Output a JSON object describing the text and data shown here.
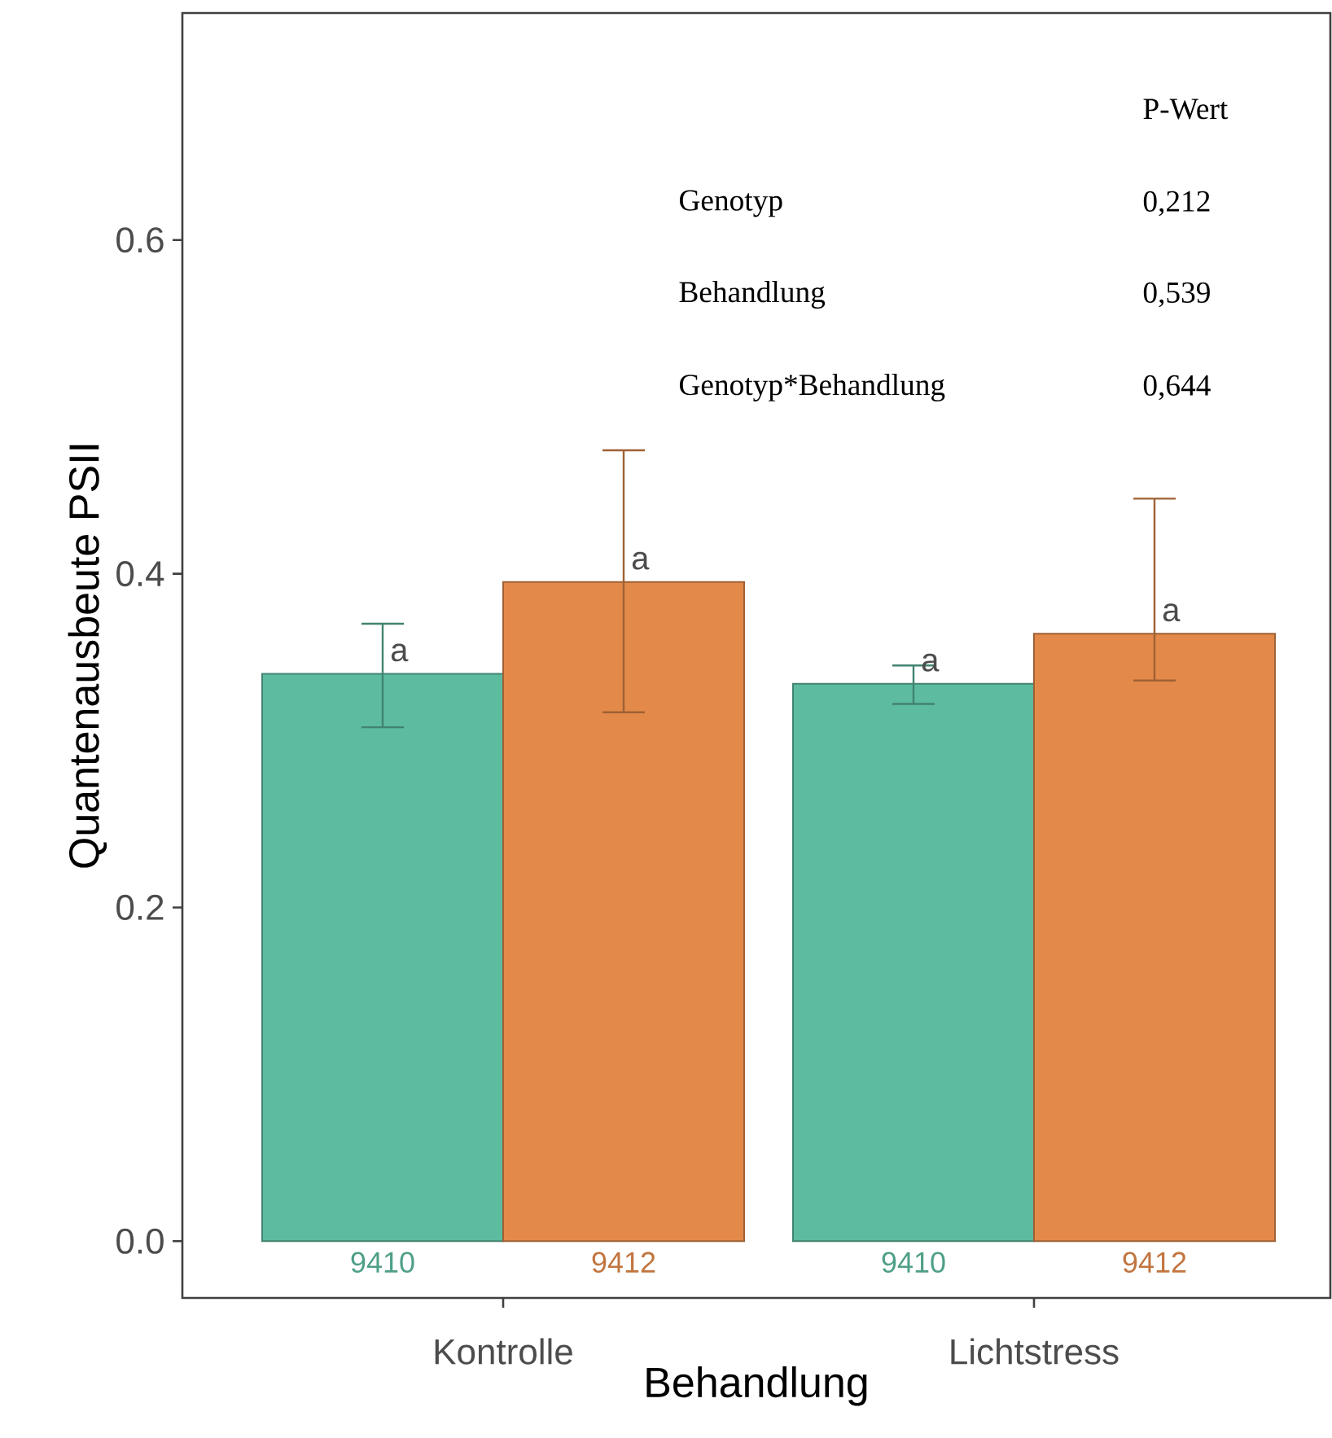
{
  "chart_data": {
    "type": "bar",
    "xlabel": "Behandlung",
    "ylabel": "Quantenausbeute PSII",
    "categories": [
      "Kontrolle",
      "Lichtstress"
    ],
    "series": [
      {
        "name": "9410",
        "color": "#5dbba0",
        "values": [
          0.34,
          0.334
        ],
        "errors": [
          [
            0.308,
            0.37
          ],
          [
            0.322,
            0.345
          ]
        ],
        "value_labels": [
          "a",
          "a"
        ]
      },
      {
        "name": "9412",
        "color": "#e38a4a",
        "values": [
          0.395,
          0.364
        ],
        "errors": [
          [
            0.317,
            0.474
          ],
          [
            0.336,
            0.445
          ]
        ],
        "value_labels": [
          "a",
          "a"
        ]
      }
    ],
    "ylim": [
      -0.034,
      0.736
    ],
    "yticks": [
      {
        "value": 0,
        "label": "0.0"
      },
      {
        "value": 0.2,
        "label": "0.2"
      },
      {
        "value": 0.4,
        "label": "0.4"
      },
      {
        "value": 0.6,
        "label": "0.6"
      }
    ],
    "grid": false,
    "legend": false,
    "annotations": [
      "P-Wert",
      "Genotyp",
      "0,212",
      "Behandlung",
      "0,539",
      "Genotyp*Behandlung",
      "0,644"
    ]
  }
}
